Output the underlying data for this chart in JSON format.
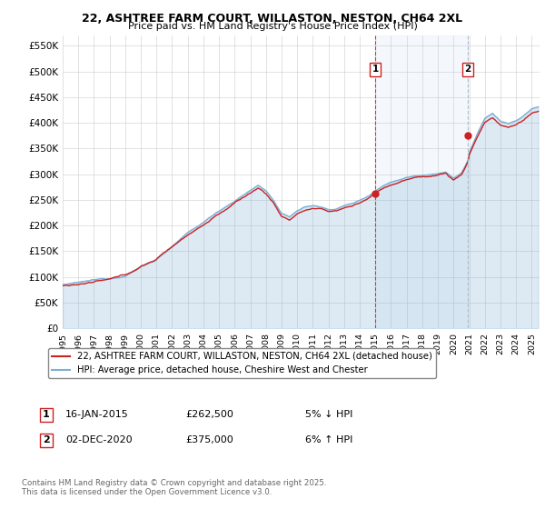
{
  "title_line1": "22, ASHTREE FARM COURT, WILLASTON, NESTON, CH64 2XL",
  "title_line2": "Price paid vs. HM Land Registry's House Price Index (HPI)",
  "ylim": [
    0,
    570000
  ],
  "yticks": [
    0,
    50000,
    100000,
    150000,
    200000,
    250000,
    300000,
    350000,
    400000,
    450000,
    500000,
    550000
  ],
  "ytick_labels": [
    "£0",
    "£50K",
    "£100K",
    "£150K",
    "£200K",
    "£250K",
    "£300K",
    "£350K",
    "£400K",
    "£450K",
    "£500K",
    "£550K"
  ],
  "hpi_color": "#7bafd4",
  "price_color": "#cc2222",
  "legend_line1": "22, ASHTREE FARM COURT, WILLASTON, NESTON, CH64 2XL (detached house)",
  "legend_line2": "HPI: Average price, detached house, Cheshire West and Chester",
  "footnote": "Contains HM Land Registry data © Crown copyright and database right 2025.\nThis data is licensed under the Open Government Licence v3.0.",
  "grid_color": "#cccccc",
  "start_year": 1995,
  "end_year": 2025,
  "sale1_year": 2015.04,
  "sale1_price": 262500,
  "sale1_label": "16-JAN-2015",
  "sale1_note": "5% ↓ HPI",
  "sale2_year": 2020.92,
  "sale2_price": 375000,
  "sale2_label": "02-DEC-2020",
  "sale2_note": "6% ↑ HPI"
}
